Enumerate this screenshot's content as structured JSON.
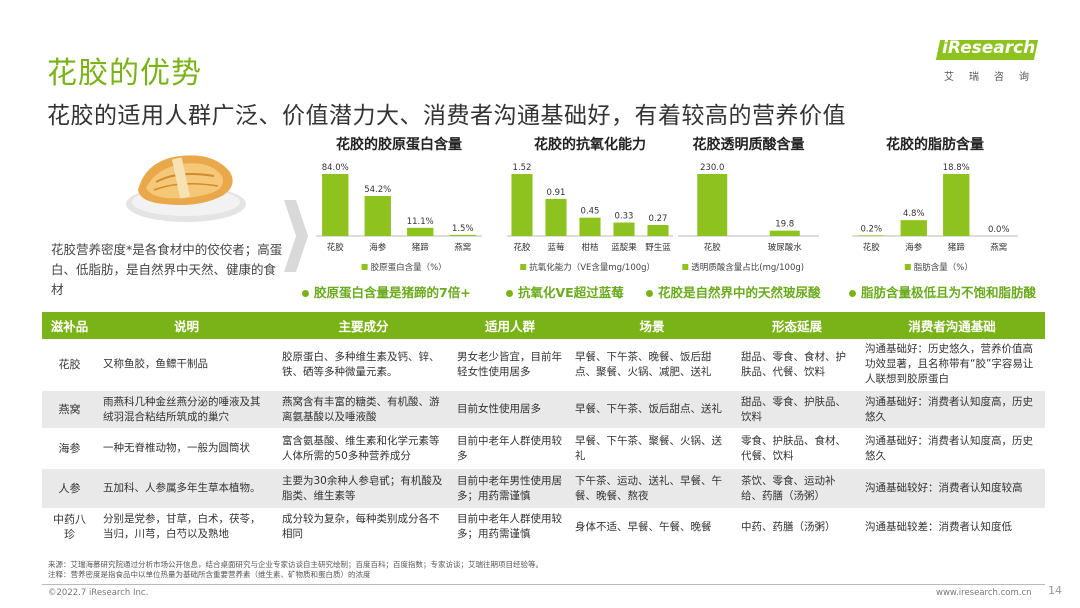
{
  "page": {
    "title": "花胶的优势",
    "subtitle": "花胶的适用人群广泛、价值潜力大、消费者沟通基础好，有着较高的营养价值",
    "logo": {
      "brand": "iResearch",
      "sub": "艾瑞咨询"
    },
    "description": "花胶营养密度*是各食材中的佼佼者；高蛋白、低脂肪，是自然界中天然、健康的食材",
    "colors": {
      "accent": "#7ab317",
      "bar": "#8dc21f",
      "row_alt": "#e9e9e9"
    },
    "icons": {
      "chevron": "chevron-right-icon",
      "dot": "bullet-dot-icon"
    }
  },
  "chart_data": [
    {
      "type": "bar",
      "title": "花胶的胶原蛋白含量",
      "categories": [
        "花胶",
        "海参",
        "猪蹄",
        "燕窝"
      ],
      "series": [
        {
          "name": "胶原蛋白含量（%）",
          "values": [
            84.0,
            54.2,
            11.1,
            1.5
          ]
        }
      ],
      "labels": [
        "84.0%",
        "54.2%",
        "11.1%",
        "1.5%"
      ],
      "legend": "bottom"
    },
    {
      "type": "bar",
      "title": "花胶的抗氧化能力",
      "categories": [
        "花胶",
        "蓝莓",
        "柑桔",
        "蓝靛果",
        "野生蓝"
      ],
      "series": [
        {
          "name": "抗氧化能力（VE含量mg/100g）",
          "values": [
            1.52,
            0.91,
            0.45,
            0.33,
            0.27
          ]
        }
      ],
      "labels": [
        "1.52",
        "0.91",
        "0.45",
        "0.33",
        "0.27"
      ],
      "legend": "bottom"
    },
    {
      "type": "bar",
      "title": "花胶透明质酸含量",
      "categories": [
        "花胶",
        "玻尿酸水"
      ],
      "series": [
        {
          "name": "透明质酸含量占比(mg/100g)",
          "values": [
            230.0,
            19.8
          ]
        }
      ],
      "labels": [
        "230.0",
        "19.8"
      ],
      "legend": "bottom"
    },
    {
      "type": "bar",
      "title": "花胶的脂肪含量",
      "categories": [
        "花胶",
        "海参",
        "猪蹄",
        "燕窝"
      ],
      "series": [
        {
          "name": "脂肪含量（%）",
          "values": [
            0.2,
            4.8,
            18.8,
            0.0
          ]
        }
      ],
      "labels": [
        "0.2%",
        "4.8%",
        "18.8%",
        "0.0%"
      ],
      "legend": "bottom"
    }
  ],
  "highlights": [
    "胶原蛋白含量是猪蹄的7倍+",
    "抗氧化VE超过蓝莓",
    "花胶是自然界中的天然玻尿酸",
    "脂肪含量极低且为不饱和脂肪酸"
  ],
  "table": {
    "headers": [
      "滋补品",
      "说明",
      "主要成分",
      "适用人群",
      "场景",
      "形态延展",
      "消费者沟通基础"
    ],
    "rows": [
      [
        "花胶",
        "又称鱼胶，鱼鳔干制品",
        "胶原蛋白、多种维生素及钙、锌、铁、硒等多种微量元素。",
        "男女老少皆宜，目前年轻女性使用居多",
        "早餐、下午茶、晚餐、饭后甜点、聚餐、火锅、减肥、送礼",
        "甜品、零食、食材、护肤品、代餐、饮料",
        "沟通基础好：历史悠久，营养价值高功效显著，且名称带有“胶”字容易让人联想到胶原蛋白"
      ],
      [
        "燕窝",
        "雨燕科几种金丝燕分泌的唾液及其绒羽混合粘结所筑成的巢穴",
        "燕窝含有丰富的糖类、有机酸、游离氨基酸以及唾液酸",
        "目前女性使用居多",
        "早餐、下午茶、饭后甜点、送礼",
        "甜品、零食、护肤品、饮料",
        "沟通基础好：消费者认知度高，历史悠久"
      ],
      [
        "海参",
        "一种无脊椎动物，一般为圆筒状",
        "富含氨基酸、维生素和化学元素等人体所需的50多种营养成分",
        "目前中老年人群使用较多",
        "早餐、下午茶、聚餐、火锅、送礼",
        "零食、护肤品、食材、代餐、饮料",
        "沟通基础好：消费者认知度高，历史悠久"
      ],
      [
        "人参",
        "五加科、人参属多年生草本植物。",
        "主要为30余种人参皂甙；有机酸及脂类、维生素等",
        "目前中老年男性使用居多；用药需谨慎",
        "下午茶、运动、送礼、早餐、午餐、晚餐、熬夜",
        "茶饮、零食、运动补给、药膳（汤粥）",
        "沟通基础较好：消费者认知度较高"
      ],
      [
        "中药八珍",
        "分别是党参，甘草，白术，茯苓，当归，川芎，白芍以及熟地",
        "成分较为复杂，每种类别成分各不相同",
        "目前中老年人群使用较多；用药需谨慎",
        "身体不适、早餐、午餐、晚餐",
        "中药、药膳（汤粥）",
        "沟通基础较差：消费者认知度低"
      ]
    ]
  },
  "footer": {
    "source": "来源：艾瑞海慕研究院通过分析市场公开信息，结合桌面研究与企业专家访谈自主研究绘制；百度百科；百度指数；专家访谈；艾瑞往期项目经验等。",
    "note": "注释：营养密度是指食品中以单位热量为基础所含重要营养素（维生素、矿物质和蛋白质）的浓度",
    "copyright": "©2022.7 iResearch Inc.",
    "site": "www.iresearch.com.cn",
    "page_number": "14"
  }
}
